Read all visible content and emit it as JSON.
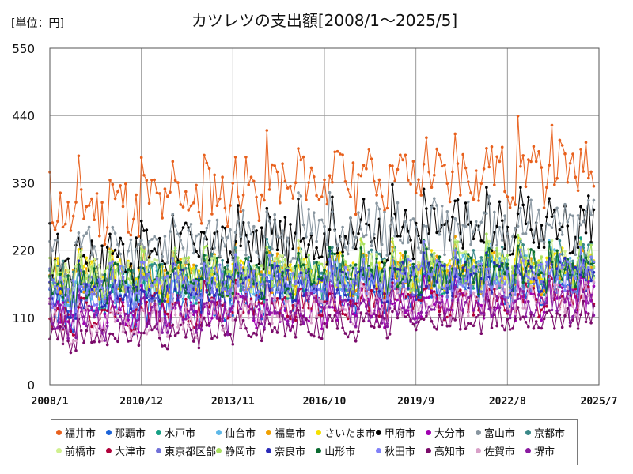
{
  "chart_data": {
    "type": "line",
    "title": "カツレツの支出額[2008/1～2025/5]",
    "unit_label": "[単位：円]",
    "xlabel": "",
    "ylabel": "",
    "ylim": [
      0,
      550
    ],
    "yticks": [
      0,
      110,
      220,
      330,
      440,
      550
    ],
    "ytick_labels": [
      "0",
      "110",
      "220",
      "330",
      "440",
      "550"
    ],
    "xticks": [
      "2008/1",
      "2010/12",
      "2013/11",
      "2016/10",
      "2019/9",
      "2022/8",
      "2025/7"
    ],
    "x_start": "2008/1",
    "x_end": "2025/7",
    "last_observation": "2025/5",
    "grid": true,
    "legend_position": "bottom",
    "series": [
      {
        "name": "福井市",
        "color": "#e8601c",
        "base": [
          275,
          330,
          350
        ],
        "amp": 60,
        "noise": 45,
        "seed": 11
      },
      {
        "name": "那覇市",
        "color": "#1b63d8",
        "base": [
          115,
          150,
          175
        ],
        "amp": 40,
        "noise": 35,
        "seed": 12
      },
      {
        "name": "水戸市",
        "color": "#16a085",
        "base": [
          150,
          175,
          180
        ],
        "amp": 35,
        "noise": 30,
        "seed": 13
      },
      {
        "name": "仙台市",
        "color": "#5db8e8",
        "base": [
          150,
          170,
          190
        ],
        "amp": 35,
        "noise": 30,
        "seed": 14
      },
      {
        "name": "福島市",
        "color": "#f0a000",
        "base": [
          170,
          175,
          185
        ],
        "amp": 40,
        "noise": 30,
        "seed": 15
      },
      {
        "name": "さいたま市",
        "color": "#f5e000",
        "base": [
          170,
          180,
          190
        ],
        "amp": 35,
        "noise": 30,
        "seed": 16
      },
      {
        "name": "甲府市",
        "color": "#000000",
        "base": [
          200,
          240,
          260
        ],
        "amp": 50,
        "noise": 40,
        "seed": 17
      },
      {
        "name": "大分市",
        "color": "#a000b0",
        "base": [
          110,
          120,
          140
        ],
        "amp": 30,
        "noise": 25,
        "seed": 18
      },
      {
        "name": "富山市",
        "color": "#8896a0",
        "base": [
          200,
          250,
          260
        ],
        "amp": 45,
        "noise": 40,
        "seed": 19
      },
      {
        "name": "京都市",
        "color": "#3a8888",
        "base": [
          170,
          180,
          200
        ],
        "amp": 35,
        "noise": 30,
        "seed": 20
      },
      {
        "name": "前橋市",
        "color": "#d0f090",
        "base": [
          170,
          180,
          190
        ],
        "amp": 35,
        "noise": 30,
        "seed": 21
      },
      {
        "name": "大津市",
        "color": "#b0003a",
        "base": [
          110,
          130,
          140
        ],
        "amp": 30,
        "noise": 25,
        "seed": 22
      },
      {
        "name": "東京都区部",
        "color": "#7070d8",
        "base": [
          150,
          160,
          170
        ],
        "amp": 30,
        "noise": 25,
        "seed": 23
      },
      {
        "name": "静岡市",
        "color": "#a8e060",
        "base": [
          170,
          180,
          190
        ],
        "amp": 35,
        "noise": 30,
        "seed": 24
      },
      {
        "name": "奈良市",
        "color": "#2a2ab8",
        "base": [
          140,
          165,
          175
        ],
        "amp": 35,
        "noise": 30,
        "seed": 25
      },
      {
        "name": "山形市",
        "color": "#0a6a30",
        "base": [
          160,
          180,
          185
        ],
        "amp": 35,
        "noise": 30,
        "seed": 26
      },
      {
        "name": "秋田市",
        "color": "#8080f8",
        "base": [
          150,
          170,
          180
        ],
        "amp": 35,
        "noise": 30,
        "seed": 27
      },
      {
        "name": "高知市",
        "color": "#7a0a6a",
        "base": [
          75,
          95,
          110
        ],
        "amp": 25,
        "noise": 20,
        "seed": 28
      },
      {
        "name": "佐賀市",
        "color": "#d8a0c8",
        "base": [
          95,
          120,
          140
        ],
        "amp": 30,
        "noise": 25,
        "seed": 29
      },
      {
        "name": "堺市",
        "color": "#8a1aa0",
        "base": [
          100,
          120,
          130
        ],
        "amp": 30,
        "noise": 25,
        "seed": 30
      }
    ]
  }
}
